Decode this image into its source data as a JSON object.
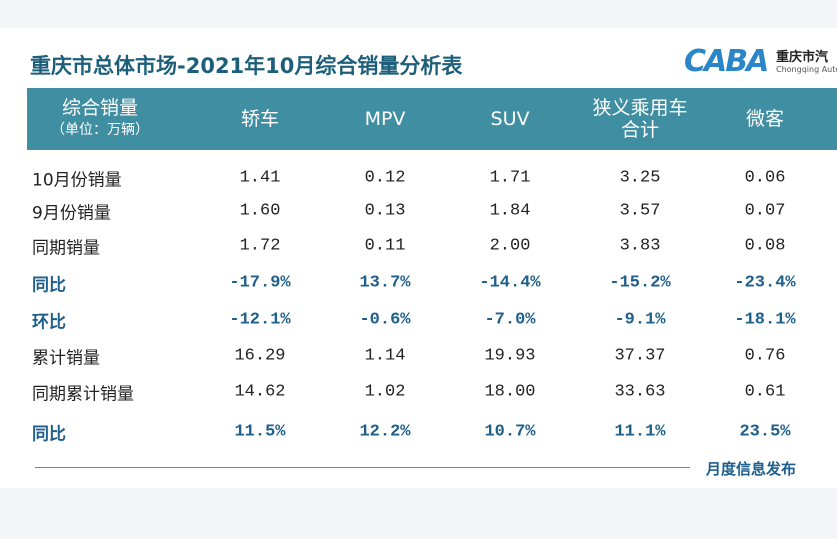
{
  "header": {
    "title": "重庆市总体市场-2021年10月综合销量分析表",
    "logo": {
      "mark": "CABA",
      "name": "重庆市汽",
      "subname": "Chongqing Auto"
    }
  },
  "table": {
    "columns": [
      [
        "综合销量",
        "（单位：万辆）"
      ],
      [
        "轿车"
      ],
      [
        "MPV"
      ],
      [
        "SUV"
      ],
      [
        "狭义乘用车",
        "合计"
      ],
      [
        "微客"
      ]
    ],
    "rows": [
      [
        "10月份销量",
        "1.41",
        "0.12",
        "1.71",
        "3.25",
        "0.06"
      ],
      [
        "9月份销量",
        "1.60",
        "0.13",
        "1.84",
        "3.57",
        "0.07"
      ],
      [
        "同期销量",
        "1.72",
        "0.11",
        "2.00",
        "3.83",
        "0.08"
      ],
      [
        "同比",
        "-17.9%",
        "13.7%",
        "-14.4%",
        "-15.2%",
        "-23.4%"
      ],
      [
        "环比",
        "-12.1%",
        "-0.6%",
        "-7.0%",
        "-9.1%",
        "-18.1%"
      ],
      [
        "累计销量",
        "16.29",
        "1.14",
        "19.93",
        "37.37",
        "0.76"
      ],
      [
        "同期累计销量",
        "14.62",
        "1.02",
        "18.00",
        "33.63",
        "0.61"
      ],
      [
        "同比",
        "11.5%",
        "12.2%",
        "10.7%",
        "11.1%",
        "23.5%"
      ]
    ],
    "emphasis_rows": [
      3,
      4,
      7
    ]
  },
  "footer": {
    "note": "月度信息发布"
  }
}
